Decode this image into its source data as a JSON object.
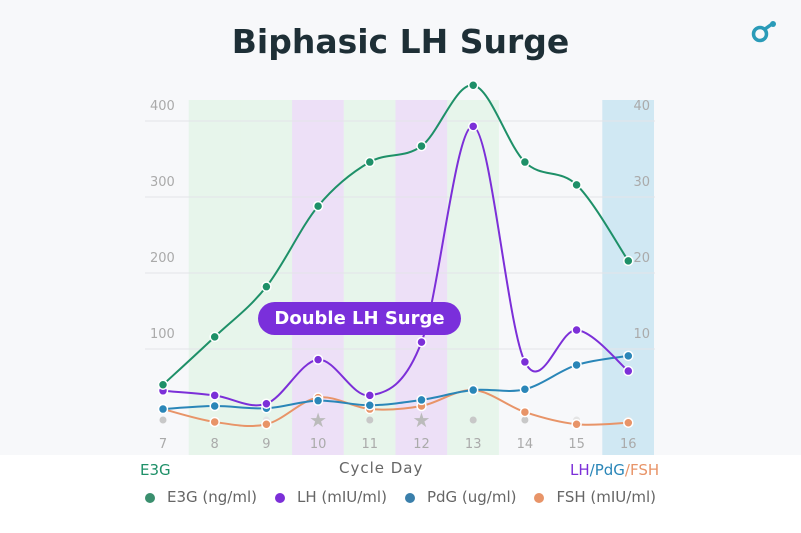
{
  "chart_data": {
    "type": "line",
    "title": "Biphasic LH Surge",
    "xlabel": "Cycle Day",
    "ylabel_left": "E3G",
    "ylabel_right": [
      "LH",
      "/",
      "PdG",
      "/",
      "FSH"
    ],
    "x": [
      7,
      8,
      9,
      10,
      11,
      12,
      13,
      14,
      15,
      16
    ],
    "yticks_left": [
      100,
      200,
      300,
      400
    ],
    "yticks_right": [
      10,
      20,
      30,
      40
    ],
    "ylim_left": [
      0,
      420
    ],
    "ylim_right": [
      0,
      42
    ],
    "grid": true,
    "legend_placement": "bottom",
    "annotation": "Double LH Surge",
    "series": [
      {
        "name": "E3G (ng/ml)",
        "axis": "left",
        "color": "#1e9068",
        "values": [
          53,
          116,
          182,
          288,
          346,
          367,
          447,
          346,
          316,
          216
        ]
      },
      {
        "name": "LH (mIU/ml)",
        "axis": "right",
        "color": "#7c2fd8",
        "values": [
          4.5,
          3.9,
          2.8,
          8.6,
          3.9,
          10.9,
          39.3,
          8.3,
          12.5,
          7.1
        ]
      },
      {
        "name": "PdG (ug/ml)",
        "axis": "right",
        "color": "#2a86b8",
        "values": [
          2.1,
          2.5,
          2.2,
          3.2,
          2.6,
          3.3,
          4.6,
          4.7,
          7.9,
          9.1
        ]
      },
      {
        "name": "FSH (mIU/ml)",
        "axis": "right",
        "color": "#e89468",
        "values": [
          2.1,
          0.4,
          0.1,
          3.6,
          2.1,
          2.5,
          4.6,
          1.7,
          0.1,
          0.3
        ]
      }
    ],
    "day_bands": [
      "none",
      "green",
      "green",
      "purple",
      "green",
      "purple",
      "green",
      "none",
      "none",
      "blue"
    ],
    "day_markers": [
      "dot",
      "none",
      "faint",
      "star",
      "dot",
      "star",
      "dot",
      "dot",
      "faint",
      "faint"
    ]
  },
  "colors": {
    "green": "#1e9068",
    "purple": "#7c2fd8",
    "blue": "#2a86b8",
    "orange": "#e89468",
    "logo": "#2a9bb8"
  },
  "logo_icon": "link-node-icon"
}
